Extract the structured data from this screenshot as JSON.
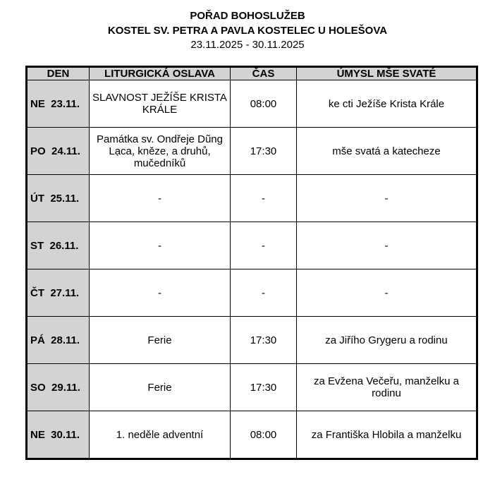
{
  "header": {
    "title": "POŘAD BOHOSLUŽEB",
    "church": "KOSTEL SV. PETRA A PAVLA KOSTELEC U HOLEŠOVA",
    "range": "23.11.2025 - 30.11.2025"
  },
  "columns": [
    "DEN",
    "LITURGICKÁ OSLAVA",
    "ČAS",
    "ÚMYSL MŠE SVATÉ"
  ],
  "rows": [
    {
      "day": "NE  23.11.",
      "celebration": "SLAVNOST JEŽÍŠE KRISTA KRÁLE",
      "time": "08:00",
      "intention": "ke cti Ježíše Krista Krále"
    },
    {
      "day": "PO  24.11.",
      "celebration": "Památka sv. Ondřeje Dũng Lạca, kněze, a druhů, mučedníků",
      "time": "17:30",
      "intention": "mše svatá a katecheze"
    },
    {
      "day": "ÚT  25.11.",
      "celebration": "-",
      "time": "-",
      "intention": "-"
    },
    {
      "day": "ST  26.11.",
      "celebration": "-",
      "time": "-",
      "intention": "-"
    },
    {
      "day": "ČT  27.11.",
      "celebration": "-",
      "time": "-",
      "intention": "-"
    },
    {
      "day": "PÁ  28.11.",
      "celebration": "Ferie",
      "time": "17:30",
      "intention": "za Jiřího Grygeru a rodinu"
    },
    {
      "day": "SO  29.11.",
      "celebration": "Ferie",
      "time": "17:30",
      "intention": "za Evžena Večeřu, manželku a rodinu"
    },
    {
      "day": "NE  30.11.",
      "celebration": "1. neděle adventní",
      "time": "08:00",
      "intention": "za Františka Hlobila a manželku"
    }
  ]
}
